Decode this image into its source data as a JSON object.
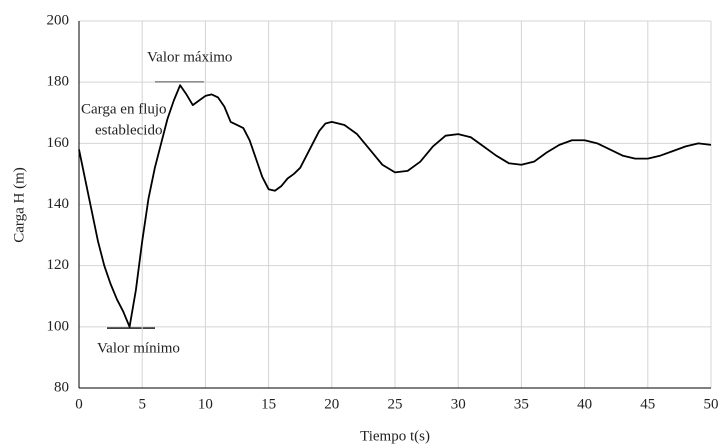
{
  "chart_data": {
    "type": "line",
    "x_label": "Tiempo t(s)",
    "y_label": "Carga H (m)",
    "annotations": [
      "Valor máximo",
      "Carga en flujo",
      "establecido",
      "Valor mínimo"
    ],
    "x": [
      0,
      0.5,
      1,
      1.5,
      2,
      2.5,
      3,
      3.5,
      4,
      4.5,
      5,
      5.5,
      6,
      6.5,
      7,
      7.5,
      8,
      8.5,
      9,
      9.5,
      10,
      10.5,
      11,
      11.5,
      12,
      12.5,
      13,
      13.5,
      14,
      14.5,
      15,
      15.5,
      16,
      16.5,
      17,
      17.5,
      18,
      18.5,
      19,
      19.5,
      20,
      21,
      22,
      23,
      24,
      25,
      26,
      27,
      28,
      29,
      30,
      31,
      32,
      33,
      34,
      35,
      36,
      37,
      38,
      39,
      40,
      41,
      42,
      43,
      44,
      45,
      46,
      47,
      48,
      49,
      50
    ],
    "series": [
      {
        "name": "Carga",
        "color": "#000000",
        "values": [
          158,
          148,
          138,
          128,
          120,
          114,
          109,
          105,
          100,
          112,
          128,
          142,
          152,
          160,
          168,
          174,
          179,
          176,
          172.5,
          174,
          175.5,
          176,
          175,
          172,
          167,
          166,
          165,
          161,
          155,
          149,
          145,
          144.5,
          146,
          148.5,
          150,
          152,
          156,
          160,
          164,
          166.5,
          167,
          166,
          163,
          158,
          153,
          150.5,
          151,
          154,
          159,
          162.5,
          163,
          162,
          159,
          156,
          153.5,
          153,
          154,
          157,
          159.5,
          161,
          161,
          160,
          158,
          156,
          155,
          155,
          156,
          157.5,
          159,
          160,
          159.5
        ]
      }
    ],
    "xlim": [
      0,
      50
    ],
    "xticks": [
      0,
      5,
      10,
      15,
      20,
      25,
      30,
      35,
      40,
      45,
      50
    ],
    "ylim": [
      80,
      200
    ],
    "yticks": [
      80,
      100,
      120,
      140,
      160,
      180,
      200
    ],
    "grid": true
  }
}
